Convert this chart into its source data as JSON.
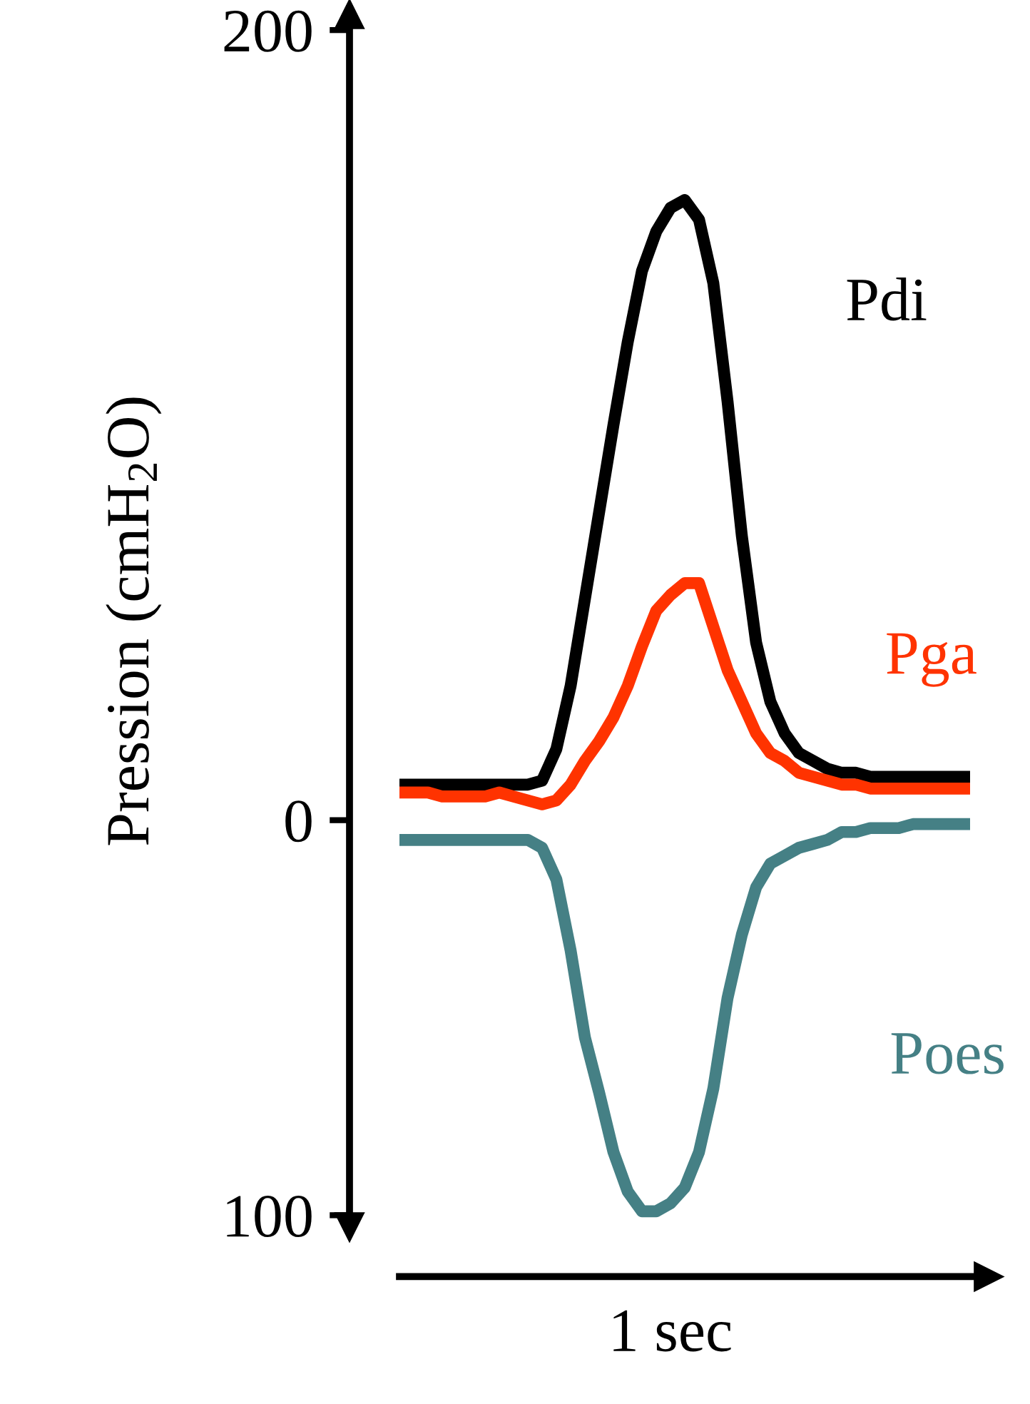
{
  "chart_data": {
    "type": "line",
    "ylabel": "Pression (cmH$_{2}$O)",
    "xlabel": "1 sec",
    "categories": [
      null,
      null,
      null,
      null,
      null,
      null,
      null,
      null,
      null,
      null,
      null,
      null,
      null,
      null,
      null,
      null,
      null,
      null,
      null,
      null,
      null,
      null,
      null,
      null,
      null,
      null,
      null,
      null,
      null,
      null,
      null,
      null,
      null,
      null,
      null,
      null,
      null,
      null,
      null,
      null,
      null
    ],
    "ylim": [
      -103,
      204
    ],
    "yticks": [
      200,
      0,
      {
        "value": -100,
        "label": "100"
      }
    ],
    "tick_labels": "y",
    "grid": false,
    "legend": false,
    "marker": "none",
    "line_style": "solid",
    "series": [
      {
        "name": "Pdi",
        "color": "#000000",
        "values": [
          9,
          9,
          9,
          9,
          9,
          9,
          9,
          9,
          9,
          9,
          10,
          18,
          34,
          56,
          78,
          100,
          121,
          139,
          149,
          155,
          157,
          152,
          136,
          106,
          72,
          45,
          30,
          22,
          17,
          15,
          13,
          12,
          12,
          11,
          11,
          11,
          11,
          11,
          11,
          11,
          11
        ]
      },
      {
        "name": "Pga",
        "color": "#ff3300",
        "values": [
          7,
          7,
          7,
          6,
          6,
          6,
          6,
          7,
          6,
          5,
          4,
          5,
          9,
          15,
          20,
          26,
          34,
          44,
          53,
          57,
          60,
          60,
          49,
          38,
          30,
          22,
          17,
          15,
          12,
          11,
          10,
          9,
          9,
          8,
          8,
          8,
          8,
          8,
          8,
          8,
          8
        ]
      },
      {
        "name": "Poes",
        "color": "#458085",
        "values": [
          -5,
          -5,
          -5,
          -5,
          -5,
          -5,
          -5,
          -5,
          -5,
          -5,
          -7,
          -15,
          -33,
          -55,
          -69,
          -84,
          -94,
          -99,
          -99,
          -97,
          -93,
          -84,
          -68,
          -45,
          -29,
          -17,
          -11,
          -9,
          -7,
          -6,
          -5,
          -3,
          -3,
          -2,
          -2,
          -2,
          -1,
          -1,
          -1,
          -1,
          -1
        ]
      }
    ]
  }
}
